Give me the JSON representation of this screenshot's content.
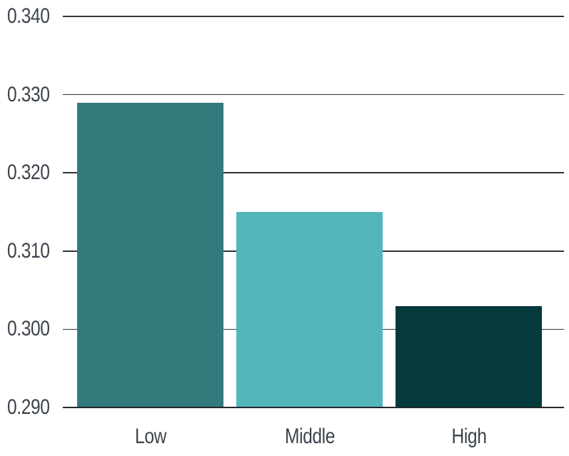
{
  "chart_data": {
    "type": "bar",
    "categories": [
      "Low",
      "Middle",
      "High"
    ],
    "values": [
      0.329,
      0.315,
      0.303
    ],
    "bar_colors": [
      "#337a7d",
      "#53b6ba",
      "#053a3c"
    ],
    "title": "",
    "xlabel": "",
    "ylabel": "",
    "ylim": [
      0.29,
      0.34
    ],
    "y_ticks": [
      0.34,
      0.33,
      0.32,
      0.31,
      0.3,
      0.29
    ],
    "y_tick_labels": [
      "0.340",
      "0.330",
      "0.320",
      "0.310",
      "0.300",
      "0.290"
    ],
    "grid": true,
    "legend": false,
    "baseline_value": 0.29
  },
  "colors": {
    "background": "#ffffff",
    "text": "#3b434c",
    "gridline": "#2f353b",
    "axis_line": "#25292d"
  }
}
